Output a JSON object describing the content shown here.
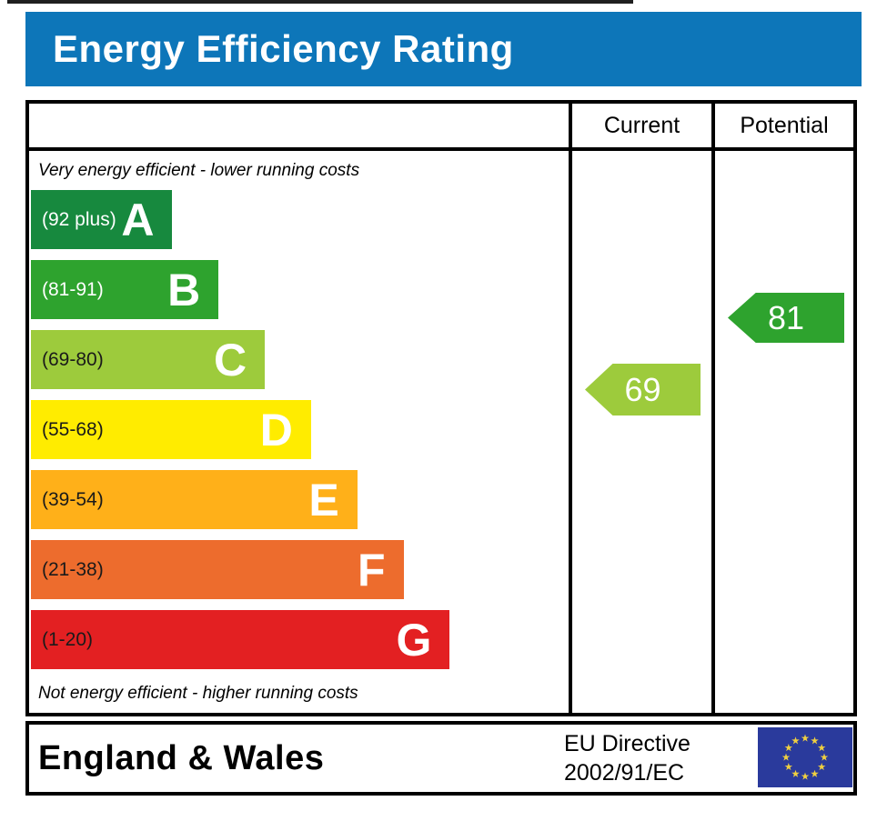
{
  "header": {
    "title": "Energy Efficiency Rating",
    "bg_color": "#0D76B9"
  },
  "table": {
    "columns": {
      "current": "Current",
      "potential": "Potential"
    },
    "top_note": "Very energy efficient - lower running costs",
    "bottom_note": "Not energy efficient - higher running costs"
  },
  "chart_data": {
    "type": "bar",
    "title": "Energy Efficiency Rating",
    "scale": {
      "min": 1,
      "max": 100
    },
    "bands": [
      {
        "letter": "A",
        "range": "(92 plus)",
        "score_min": 92,
        "score_max": 100,
        "color": "#17893E",
        "text_color": "#FFFFFF",
        "width_pct": 26.3
      },
      {
        "letter": "B",
        "range": "(81-91)",
        "score_min": 81,
        "score_max": 91,
        "color": "#2EA32E",
        "text_color": "#FFFFFF",
        "width_pct": 34.9
      },
      {
        "letter": "C",
        "range": "(69-80)",
        "score_min": 69,
        "score_max": 80,
        "color": "#9DCB3C",
        "text_color": "#1A1A1A",
        "width_pct": 43.5
      },
      {
        "letter": "D",
        "range": "(55-68)",
        "score_min": 55,
        "score_max": 68,
        "color": "#FFEC00",
        "text_color": "#1A1A1A",
        "width_pct": 52.1
      },
      {
        "letter": "E",
        "range": "(39-54)",
        "score_min": 39,
        "score_max": 54,
        "color": "#FFB019",
        "text_color": "#1A1A1A",
        "width_pct": 60.7
      },
      {
        "letter": "F",
        "range": "(21-38)",
        "score_min": 21,
        "score_max": 38,
        "color": "#ED6C2D",
        "text_color": "#1A1A1A",
        "width_pct": 69.3
      },
      {
        "letter": "G",
        "range": "(1-20)",
        "score_min": 1,
        "score_max": 20,
        "color": "#E32022",
        "text_color": "#1A1A1A",
        "width_pct": 77.9
      }
    ],
    "markers": {
      "current": {
        "label": "Current",
        "value": 69,
        "band": "C",
        "color": "#9DCB3C"
      },
      "potential": {
        "label": "Potential",
        "value": 81,
        "band": "B",
        "color": "#2EA32E"
      }
    }
  },
  "footer": {
    "region": "England & Wales",
    "directive_line1": "EU Directive",
    "directive_line2": "2002/91/EC",
    "eu_flag": {
      "bg": "#2A3A9C",
      "star_color": "#F0D040"
    }
  }
}
